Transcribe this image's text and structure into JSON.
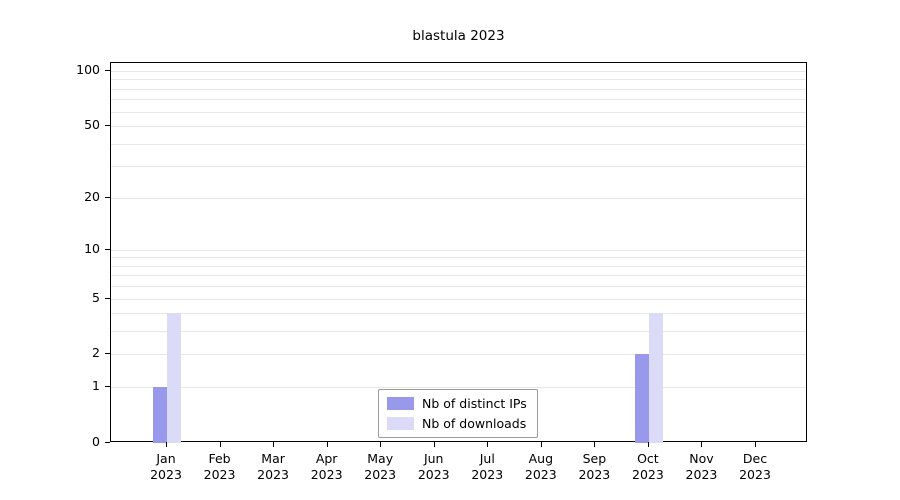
{
  "chart_data": {
    "type": "bar",
    "title": "blastula 2023",
    "x_months": [
      "Jan",
      "Feb",
      "Mar",
      "Apr",
      "May",
      "Jun",
      "Jul",
      "Aug",
      "Sep",
      "Oct",
      "Nov",
      "Dec"
    ],
    "x_year": "2023",
    "series": [
      {
        "name": "Nb of distinct IPs",
        "color": "#9999ec",
        "values": [
          1,
          0,
          0,
          0,
          0,
          0,
          0,
          0,
          0,
          2,
          0,
          0
        ]
      },
      {
        "name": "Nb of downloads",
        "color": "#dbdbf8",
        "values": [
          4,
          0,
          0,
          0,
          0,
          0,
          0,
          0,
          0,
          4,
          0,
          0
        ]
      }
    ],
    "y_ticks": [
      0,
      1,
      2,
      5,
      10,
      20,
      50,
      100
    ],
    "grid_values": [
      1,
      2,
      3,
      4,
      5,
      6,
      7,
      8,
      9,
      10,
      20,
      30,
      40,
      50,
      60,
      70,
      80,
      90,
      100
    ],
    "ylim": [
      0,
      100
    ],
    "scale": "log10(1+v)",
    "grid_color": "#e7e7e7",
    "axis_color": "#000000",
    "legend": {
      "position": "lower-center"
    }
  }
}
